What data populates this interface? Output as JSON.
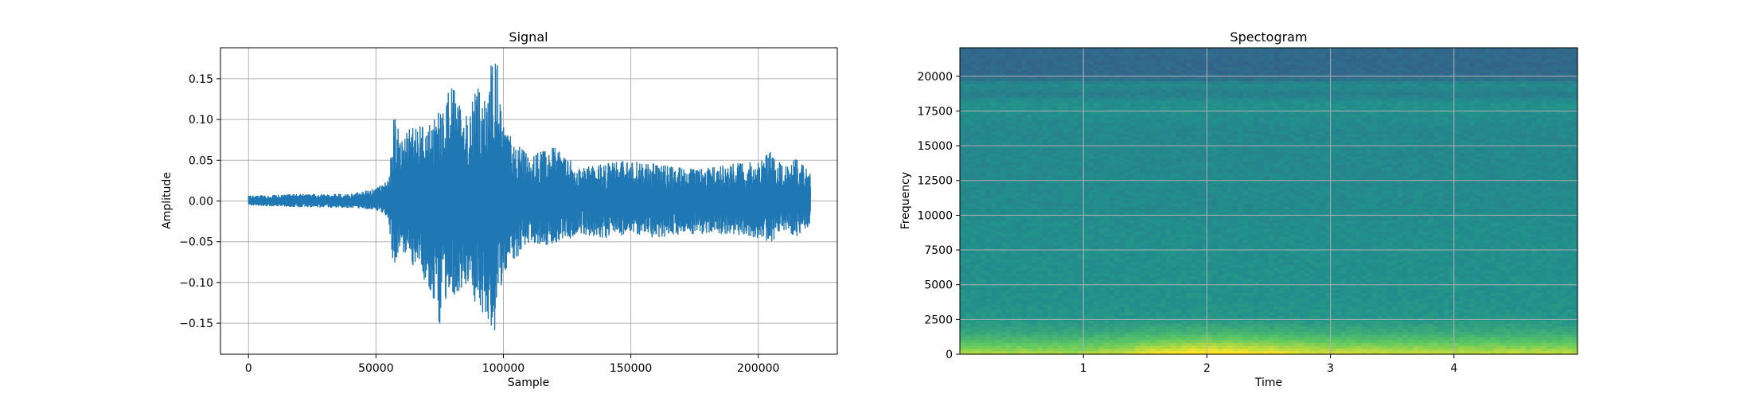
{
  "chart_data": [
    {
      "type": "line",
      "title": "Signal",
      "xlabel": "Sample",
      "ylabel": "Amplitude",
      "xlim": [
        -11000,
        231000
      ],
      "ylim": [
        -0.188,
        0.188
      ],
      "xticks": [
        0,
        50000,
        100000,
        150000,
        200000
      ],
      "xtick_labels": [
        "0",
        "50000",
        "100000",
        "150000",
        "200000"
      ],
      "yticks": [
        -0.15,
        -0.1,
        -0.05,
        0.0,
        0.05,
        0.1,
        0.15
      ],
      "ytick_labels": [
        "−0.15",
        "−0.10",
        "−0.05",
        "0.00",
        "0.05",
        "0.10",
        "0.15"
      ],
      "grid": true,
      "line_color": "#1f77b4",
      "n_samples": 220500,
      "envelope": {
        "x": [
          0,
          20000,
          40000,
          50000,
          55000,
          57000,
          60000,
          65000,
          70000,
          75000,
          80000,
          85000,
          90000,
          93000,
          95000,
          97000,
          98000,
          100000,
          105000,
          110000,
          120000,
          130000,
          140000,
          150000,
          160000,
          170000,
          180000,
          190000,
          200000,
          205000,
          210000,
          215000,
          220000
        ],
        "max": [
          0.006,
          0.008,
          0.008,
          0.015,
          0.025,
          0.105,
          0.075,
          0.095,
          0.088,
          0.11,
          0.15,
          0.1,
          0.14,
          0.125,
          0.168,
          0.168,
          0.165,
          0.09,
          0.07,
          0.055,
          0.065,
          0.04,
          0.045,
          0.05,
          0.045,
          0.04,
          0.04,
          0.045,
          0.048,
          0.06,
          0.04,
          0.052,
          0.035
        ],
        "min": [
          -0.005,
          -0.007,
          -0.008,
          -0.01,
          -0.022,
          -0.09,
          -0.06,
          -0.08,
          -0.1,
          -0.15,
          -0.12,
          -0.1,
          -0.13,
          -0.14,
          -0.17,
          -0.17,
          -0.12,
          -0.09,
          -0.07,
          -0.05,
          -0.055,
          -0.04,
          -0.045,
          -0.04,
          -0.045,
          -0.04,
          -0.04,
          -0.04,
          -0.045,
          -0.05,
          -0.035,
          -0.045,
          -0.03
        ]
      }
    },
    {
      "type": "heatmap",
      "title": "Spectogram",
      "xlabel": "Time",
      "ylabel": "Frequency",
      "xlim": [
        0,
        5.0
      ],
      "ylim": [
        0,
        22050
      ],
      "xticks": [
        1,
        2,
        3,
        4
      ],
      "xtick_labels": [
        "1",
        "2",
        "3",
        "4"
      ],
      "yticks": [
        0,
        2500,
        5000,
        7500,
        10000,
        12500,
        15000,
        17500,
        20000
      ],
      "ytick_labels": [
        "0",
        "2500",
        "5000",
        "7500",
        "10000",
        "12500",
        "15000",
        "17500",
        "20000"
      ],
      "grid": true,
      "colormap": "viridis",
      "colormap_stops": [
        "#440154",
        "#3b528b",
        "#21918c",
        "#5ec962",
        "#fde725"
      ],
      "intensity_profile_freq": {
        "freq": [
          0,
          300,
          800,
          1500,
          2500,
          4000,
          8000,
          12000,
          16000,
          18000,
          18700,
          19400,
          19800,
          20200,
          22050
        ],
        "level": [
          0.88,
          0.82,
          0.72,
          0.6,
          0.52,
          0.5,
          0.49,
          0.47,
          0.46,
          0.5,
          0.42,
          0.48,
          0.36,
          0.34,
          0.34
        ]
      },
      "intensity_profile_time": {
        "time": [
          0,
          1.0,
          1.3,
          1.6,
          2.0,
          2.3,
          2.7,
          3.0,
          3.5,
          4.0,
          4.5,
          5.0
        ],
        "boost": [
          0.0,
          0.0,
          0.04,
          0.12,
          0.16,
          0.14,
          0.1,
          0.06,
          0.05,
          0.04,
          0.04,
          0.03
        ]
      }
    }
  ]
}
